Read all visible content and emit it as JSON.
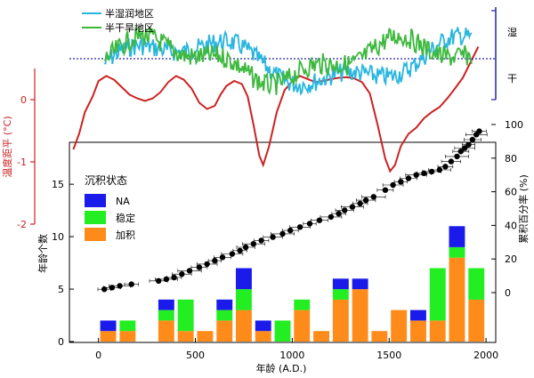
{
  "chart_data": [
    {
      "id": "moisture",
      "type": "line",
      "series": [
        {
          "name": "半湿润地区",
          "color": "#29b6e0"
        },
        {
          "name": "半干旱地区",
          "color": "#3cb83c"
        }
      ],
      "right_axis_labels": [
        "湿",
        "干"
      ],
      "reference_line": "dotted-blue"
    },
    {
      "id": "temperature",
      "type": "line",
      "ylabel": "温度距平 (°C)",
      "yticks": [
        0,
        -1,
        -2
      ],
      "ylim": [
        -2,
        0.5
      ],
      "color": "#cc2222",
      "points": [
        [
          -130,
          -0.8
        ],
        [
          -100,
          -0.55
        ],
        [
          -70,
          -0.2
        ],
        [
          -30,
          0.05
        ],
        [
          0,
          0.3
        ],
        [
          40,
          0.38
        ],
        [
          80,
          0.32
        ],
        [
          120,
          0.2
        ],
        [
          160,
          0.08
        ],
        [
          200,
          0.02
        ],
        [
          240,
          -0.02
        ],
        [
          280,
          0.02
        ],
        [
          320,
          0.12
        ],
        [
          360,
          0.28
        ],
        [
          400,
          0.38
        ],
        [
          440,
          0.32
        ],
        [
          480,
          0.18
        ],
        [
          520,
          -0.05
        ],
        [
          560,
          -0.15
        ],
        [
          600,
          -0.1
        ],
        [
          630,
          0.08
        ],
        [
          660,
          0.22
        ],
        [
          700,
          0.3
        ],
        [
          740,
          0.25
        ],
        [
          770,
          0.05
        ],
        [
          800,
          -0.4
        ],
        [
          830,
          -0.9
        ],
        [
          850,
          -1.05
        ],
        [
          880,
          -0.75
        ],
        [
          920,
          -0.2
        ],
        [
          960,
          0.15
        ],
        [
          1000,
          0.3
        ],
        [
          1040,
          0.38
        ],
        [
          1080,
          0.33
        ],
        [
          1120,
          0.28
        ],
        [
          1160,
          0.3
        ],
        [
          1200,
          0.33
        ],
        [
          1240,
          0.35
        ],
        [
          1280,
          0.36
        ],
        [
          1320,
          0.34
        ],
        [
          1360,
          0.28
        ],
        [
          1400,
          0.1
        ],
        [
          1440,
          -0.4
        ],
        [
          1480,
          -0.95
        ],
        [
          1505,
          -1.15
        ],
        [
          1530,
          -1.05
        ],
        [
          1560,
          -0.75
        ],
        [
          1600,
          -0.55
        ],
        [
          1640,
          -0.45
        ],
        [
          1680,
          -0.3
        ],
        [
          1720,
          -0.2
        ],
        [
          1760,
          -0.12
        ],
        [
          1800,
          0.02
        ],
        [
          1840,
          0.18
        ],
        [
          1880,
          0.35
        ],
        [
          1920,
          0.6
        ],
        [
          1960,
          0.85
        ]
      ]
    },
    {
      "id": "age_cumulative",
      "type": "scatter",
      "ylabel": "累积百分率 (%)",
      "yticks": [
        0,
        20,
        40,
        60,
        80,
        100
      ],
      "ylim": [
        0,
        100
      ],
      "x": [
        30,
        70,
        110,
        170,
        310,
        350,
        390,
        430,
        470,
        520,
        560,
        600,
        640,
        690,
        730,
        760,
        800,
        840,
        900,
        950,
        990,
        1040,
        1090,
        1140,
        1200,
        1240,
        1270,
        1310,
        1350,
        1380,
        1420,
        1480,
        1520,
        1560,
        1600,
        1640,
        1680,
        1720,
        1760,
        1790,
        1820,
        1850,
        1870,
        1890,
        1910,
        1930,
        1950,
        1965
      ],
      "values": [
        2,
        3,
        4,
        5,
        7,
        8,
        9,
        11,
        13,
        15,
        17,
        19,
        21,
        23,
        25,
        27,
        29,
        31,
        33,
        35,
        37,
        39,
        41,
        43,
        45,
        47,
        49,
        51,
        53,
        55,
        57,
        61,
        64,
        66,
        68,
        70,
        71,
        72,
        73,
        75,
        78,
        81,
        84,
        86,
        88,
        91,
        94,
        96
      ],
      "xerr": 55
    },
    {
      "id": "ages_histogram",
      "type": "bar",
      "xlabel": "年龄 (A.D.)",
      "ylabel": "年龄个数",
      "xlim": [
        -150,
        2050
      ],
      "xticks": [
        0,
        500,
        1000,
        1500,
        2000
      ],
      "yticks": [
        0,
        5,
        10,
        15
      ],
      "ylim": [
        0,
        19
      ],
      "bin_width": 100,
      "title": "沉积状态",
      "series": [
        {
          "name": "NA",
          "color": "#1a1aeb"
        },
        {
          "name": "稳定",
          "color": "#22ee22"
        },
        {
          "name": "加积",
          "color": "#ff8c1a"
        }
      ],
      "bins": [
        {
          "x": 50,
          "values": [
            1,
            0,
            1
          ]
        },
        {
          "x": 150,
          "values": [
            0,
            1,
            1
          ]
        },
        {
          "x": 350,
          "values": [
            1,
            1,
            2
          ]
        },
        {
          "x": 450,
          "values": [
            0,
            3,
            1
          ]
        },
        {
          "x": 550,
          "values": [
            0,
            0,
            1
          ]
        },
        {
          "x": 650,
          "values": [
            1,
            1,
            2
          ]
        },
        {
          "x": 750,
          "values": [
            2,
            2,
            3
          ]
        },
        {
          "x": 850,
          "values": [
            1,
            0,
            1
          ]
        },
        {
          "x": 950,
          "values": [
            0,
            2,
            0
          ]
        },
        {
          "x": 1050,
          "values": [
            0,
            1,
            3
          ]
        },
        {
          "x": 1150,
          "values": [
            0,
            0,
            1
          ]
        },
        {
          "x": 1250,
          "values": [
            1,
            1,
            4
          ]
        },
        {
          "x": 1350,
          "values": [
            1,
            0,
            5
          ]
        },
        {
          "x": 1450,
          "values": [
            0,
            0,
            1
          ]
        },
        {
          "x": 1550,
          "values": [
            0,
            0,
            3
          ]
        },
        {
          "x": 1650,
          "values": [
            1,
            0,
            2
          ]
        },
        {
          "x": 1750,
          "values": [
            0,
            5,
            2
          ]
        },
        {
          "x": 1850,
          "values": [
            2,
            1,
            8
          ]
        },
        {
          "x": 1950,
          "values": [
            0,
            3,
            4
          ]
        }
      ]
    }
  ]
}
